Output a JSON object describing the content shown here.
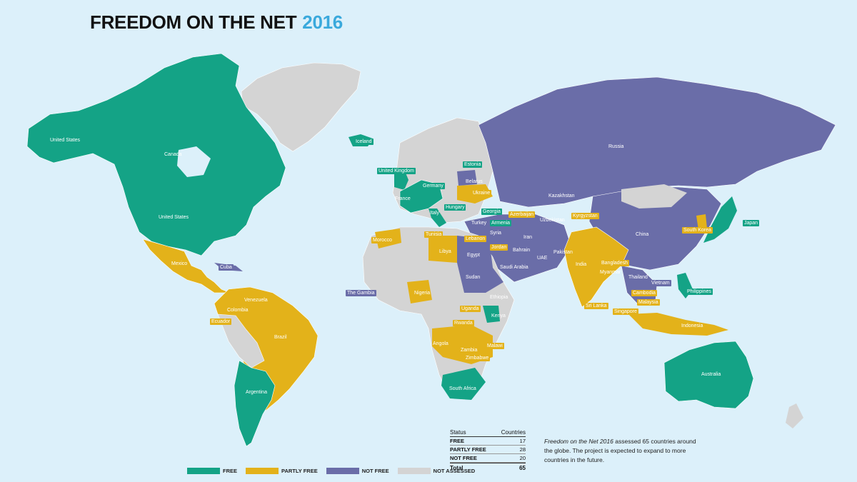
{
  "title": {
    "main": "FREEDOM ON THE NET",
    "year": "2016"
  },
  "colors": {
    "free": "#14a386",
    "partly_free": "#e3b21a",
    "not_free": "#6a6da8",
    "not_assessed": "#d4d4d4",
    "ocean": "#dcf0fa"
  },
  "countries": {
    "united_states_alaska": "United States",
    "canada": "Canada",
    "iceland": "Iceland",
    "united_states": "United States",
    "mexico": "Mexico",
    "cuba": "Cuba",
    "venezuela": "Venezuela",
    "colombia": "Colombia",
    "ecuador": "Ecuador",
    "brazil": "Brazil",
    "argentina": "Argentina",
    "united_kingdom": "United Kingdom",
    "estonia": "Estonia",
    "belarus": "Belarus",
    "germany": "Germany",
    "ukraine": "Ukraine",
    "france": "France",
    "hungary": "Hungary",
    "italy": "Italy",
    "georgia": "Georgia",
    "azerbaijan": "Azerbaijan",
    "armenia": "Armenia",
    "turkey": "Turkey",
    "syria": "Syria",
    "tunisia": "Tunisia",
    "lebanon": "Lebanon",
    "jordan": "Jordan",
    "morocco": "Morocco",
    "libya": "Libya",
    "egypt": "Egypt",
    "bahrain": "Bahrain",
    "iran": "Iran",
    "uae": "UAE",
    "saudi_arabia": "Saudi Arabia",
    "sudan": "Sudan",
    "the_gambia": "The Gambia",
    "nigeria": "Nigeria",
    "ethiopia": "Ethiopia",
    "uganda": "Uganda",
    "kenya": "Kenya",
    "rwanda": "Rwanda",
    "angola": "Angola",
    "zambia": "Zambia",
    "malawi": "Malawi",
    "zimbabwe": "Zimbabwe",
    "south_africa": "South Africa",
    "russia": "Russia",
    "kazakhstan": "Kazakhstan",
    "uzbekistan": "Uzbekistan",
    "kyrgyzstan": "Kyrgyzstan",
    "china": "China",
    "south_korea": "South Korea",
    "japan": "Japan",
    "pakistan": "Pakistan",
    "india": "India",
    "bangladesh": "Bangladesh",
    "myanmar": "Myanmar",
    "thailand": "Thailand",
    "vietnam": "Vietnam",
    "cambodia": "Cambodia",
    "philippines": "Philippines",
    "sri_lanka": "Sri Lanka",
    "malaysia": "Malaysia",
    "singapore": "Singapore",
    "indonesia": "Indonesia",
    "australia": "Australia"
  },
  "legend": {
    "free": "FREE",
    "partly_free": "PARTLY FREE",
    "not_free": "NOT FREE",
    "not_assessed": "NOT ASSESSED"
  },
  "stats": {
    "col_status": "Status",
    "col_countries": "Countries",
    "rows": [
      {
        "label": "FREE",
        "value": "17"
      },
      {
        "label": "PARTLY FREE",
        "value": "28"
      },
      {
        "label": "NOT FREE",
        "value": "20"
      }
    ],
    "total_label": "Total",
    "total_value": "65"
  },
  "note": {
    "italic": "Freedom on the Net 2016",
    "text": " assessed 65 countries around the globe. The project is expected to expand to more countries in the future."
  }
}
